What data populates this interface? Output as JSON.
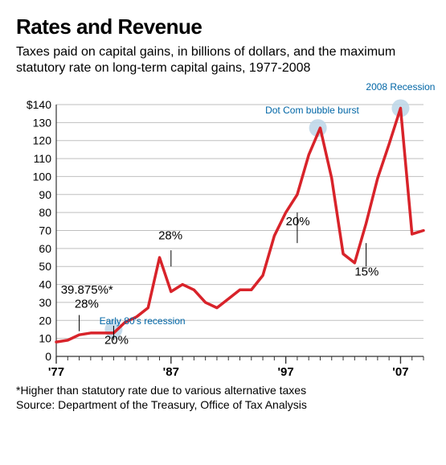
{
  "title": "Rates and Revenue",
  "subtitle": "Taxes paid on capital gains, in billions of dollars, and the maximum statutory rate on long-term capital gains, 1977-2008",
  "title_fontsize": 26,
  "subtitle_fontsize": 16,
  "footnote": "*Higher than statutory rate due to various alternative taxes",
  "source": "Source: Department of the Treasury, Office of Tax Analysis",
  "footnote_fontsize": 14,
  "chart": {
    "type": "line",
    "background_color": "#ffffff",
    "line_color": "#d8232a",
    "line_width": 3.5,
    "axis_color": "#333333",
    "grid_color": "#bfbfbf",
    "grid_width": 1,
    "tick_font_color": "#000000",
    "tick_fontsize": 14,
    "y_label_prefix": "$",
    "ylim": [
      0,
      140
    ],
    "ytick_step": 10,
    "y_ticks": [
      0,
      10,
      20,
      30,
      40,
      50,
      60,
      70,
      80,
      90,
      100,
      110,
      120,
      130,
      140
    ],
    "xlim": [
      1977,
      2009
    ],
    "x_ticks": [
      1977,
      1987,
      1997,
      2007
    ],
    "x_tick_labels": [
      "'77",
      "'87",
      "'97",
      "'07"
    ],
    "x_minor_ticks": [
      1978,
      1979,
      1980,
      1981,
      1982,
      1983,
      1984,
      1985,
      1986,
      1988,
      1989,
      1990,
      1991,
      1992,
      1993,
      1994,
      1995,
      1996,
      1998,
      1999,
      2000,
      2001,
      2002,
      2003,
      2004,
      2005,
      2006,
      2008,
      2009
    ],
    "series": {
      "years": [
        1977,
        1978,
        1979,
        1980,
        1981,
        1982,
        1983,
        1984,
        1985,
        1986,
        1987,
        1988,
        1989,
        1990,
        1991,
        1992,
        1993,
        1994,
        1995,
        1996,
        1997,
        1998,
        1999,
        2000,
        2001,
        2002,
        2003,
        2004,
        2005,
        2006,
        2007,
        2008,
        2009
      ],
      "values": [
        8,
        9,
        12,
        13,
        13,
        13,
        19,
        22,
        27,
        55,
        36,
        40,
        37,
        30,
        27,
        32,
        37,
        37,
        45,
        67,
        80,
        90,
        112,
        127,
        99,
        57,
        52,
        74,
        99,
        118,
        138,
        68,
        70
      ]
    },
    "rate_labels": [
      {
        "text": "39.875%*",
        "year": 1977.4,
        "value": 35,
        "fontsize": 15
      },
      {
        "text": "28%",
        "year": 1978.6,
        "value": 27,
        "fontsize": 15,
        "tick_year": 1979,
        "tick_y0": 14,
        "tick_y1": 23
      },
      {
        "text": "20%",
        "year": 1981.2,
        "value": 7,
        "fontsize": 15,
        "tick_year": 1982,
        "tick_y0": 9,
        "tick_y1": 17
      },
      {
        "text": "28%",
        "year": 1985.9,
        "value": 65,
        "fontsize": 15,
        "tick_year": 1987,
        "tick_y0": 50,
        "tick_y1": 59
      },
      {
        "text": "20%",
        "year": 1997.0,
        "value": 73,
        "fontsize": 15,
        "tick_year": 1998,
        "tick_y0": 63,
        "tick_y1": 80
      },
      {
        "text": "15%",
        "year": 2003.0,
        "value": 45,
        "fontsize": 15,
        "tick_year": 2004,
        "tick_y0": 50,
        "tick_y1": 63
      }
    ],
    "event_markers": [
      {
        "label": "Early 80's recession",
        "year": 1982,
        "value": 15,
        "label_year": 1984.5,
        "label_value": 18,
        "color": "#0066a6",
        "radius": 11,
        "fill": "#bcd6e8",
        "label_side": "right"
      },
      {
        "label": "Dot Com bubble burst",
        "year": 1999.8,
        "value": 127,
        "label_year": 1999.3,
        "label_value": 135,
        "color": "#0066a6",
        "radius": 11,
        "fill": "#bcd6e8",
        "label_side": "right"
      },
      {
        "label": "2008 Recession",
        "year": 2007.0,
        "value": 138,
        "label_year": 2007.0,
        "label_value": 148,
        "color": "#0066a6",
        "radius": 11,
        "fill": "#bcd6e8",
        "label_side": "right"
      }
    ],
    "event_label_fontsize": 12
  }
}
